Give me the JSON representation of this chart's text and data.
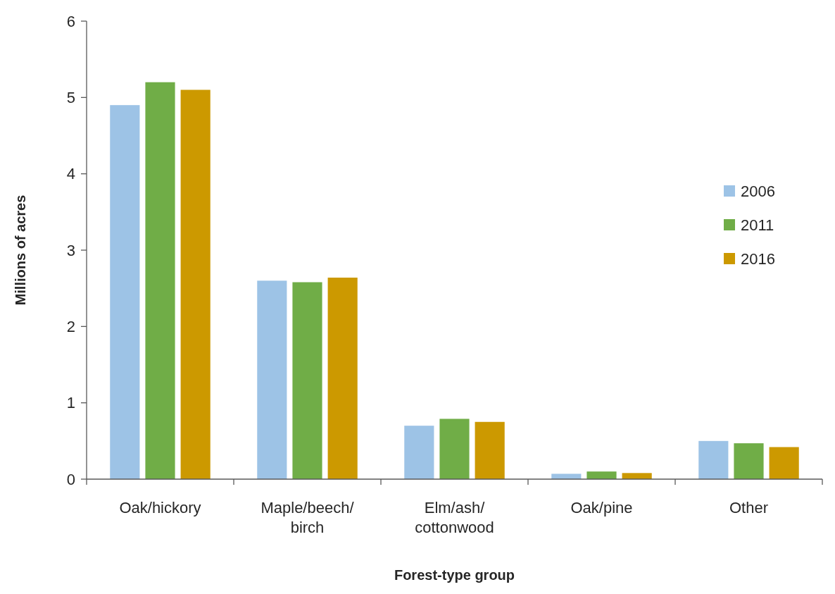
{
  "chart_data": {
    "type": "bar",
    "xlabel": "Forest-type group",
    "ylabel": "Millions of acres",
    "categories": [
      "Oak/hickory",
      "Maple/beech/birch",
      "Elm/ash/cottonwood",
      "Oak/pine",
      "Other"
    ],
    "series": [
      {
        "name": "2006",
        "color": "#9dc3e6",
        "values": [
          4.9,
          2.6,
          0.7,
          0.07,
          0.5
        ]
      },
      {
        "name": "2011",
        "color": "#70ad47",
        "values": [
          5.2,
          2.58,
          0.79,
          0.1,
          0.47
        ]
      },
      {
        "name": "2016",
        "color": "#cc9900",
        "values": [
          5.1,
          2.64,
          0.75,
          0.08,
          0.42
        ]
      }
    ],
    "ylim": [
      0,
      6
    ],
    "yticks": [
      0,
      1,
      2,
      3,
      4,
      5,
      6
    ],
    "grid": false,
    "legend": "right"
  }
}
